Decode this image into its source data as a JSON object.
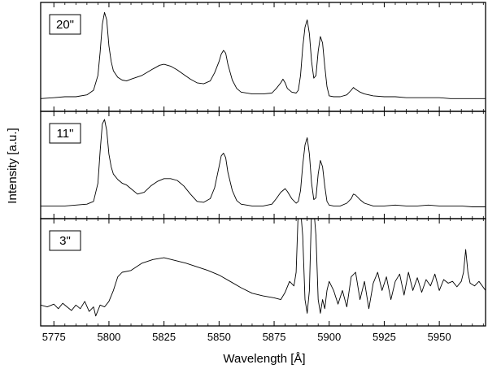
{
  "chart_data": {
    "type": "line",
    "xlabel": "Wavelength [Å]",
    "ylabel": "Intensity [a.u.]",
    "xlim": [
      5769,
      5971
    ],
    "x_ticks": [
      5775,
      5800,
      5825,
      5850,
      5875,
      5900,
      5925,
      5950
    ],
    "x_tick_labels": [
      "5775",
      "5800",
      "5825",
      "5850",
      "5875",
      "5900",
      "5925",
      "5950"
    ],
    "panels": [
      {
        "label": "20\"",
        "series": [
          {
            "x": [
              5769,
              5775,
              5780,
              5785,
              5790,
              5793,
              5795,
              5796,
              5797,
              5798,
              5799,
              5800,
              5801,
              5802,
              5804,
              5806,
              5808,
              5810,
              5815,
              5820,
              5823,
              5825,
              5828,
              5831,
              5834,
              5837,
              5840,
              5843,
              5846,
              5848,
              5850,
              5851,
              5852,
              5853,
              5854,
              5856,
              5858,
              5860,
              5865,
              5870,
              5874,
              5876,
              5878,
              5879,
              5880,
              5881,
              5883,
              5885,
              5886,
              5887,
              5888,
              5889,
              5890,
              5891,
              5892,
              5893,
              5894,
              5895,
              5896,
              5897,
              5898,
              5899,
              5900,
              5902,
              5905,
              5908,
              5910,
              5911,
              5912,
              5914,
              5916,
              5920,
              5925,
              5930,
              5935,
              5940,
              5945,
              5950,
              5955,
              5960,
              5965,
              5971
            ],
            "y": [
              0.05,
              0.06,
              0.07,
              0.07,
              0.09,
              0.14,
              0.3,
              0.55,
              0.85,
              0.98,
              0.9,
              0.62,
              0.45,
              0.35,
              0.28,
              0.25,
              0.24,
              0.26,
              0.3,
              0.37,
              0.41,
              0.42,
              0.4,
              0.36,
              0.31,
              0.26,
              0.22,
              0.21,
              0.24,
              0.33,
              0.45,
              0.53,
              0.57,
              0.54,
              0.42,
              0.25,
              0.16,
              0.12,
              0.1,
              0.1,
              0.11,
              0.16,
              0.22,
              0.26,
              0.22,
              0.16,
              0.12,
              0.11,
              0.14,
              0.3,
              0.6,
              0.82,
              0.9,
              0.75,
              0.45,
              0.27,
              0.3,
              0.56,
              0.72,
              0.65,
              0.4,
              0.18,
              0.08,
              0.07,
              0.07,
              0.09,
              0.14,
              0.17,
              0.15,
              0.12,
              0.1,
              0.08,
              0.07,
              0.07,
              0.06,
              0.06,
              0.06,
              0.06,
              0.05,
              0.05,
              0.05,
              0.05
            ]
          }
        ]
      },
      {
        "label": "11\"",
        "series": [
          {
            "x": [
              5769,
              5775,
              5780,
              5785,
              5790,
              5793,
              5795,
              5796,
              5797,
              5798,
              5799,
              5800,
              5801,
              5802,
              5804,
              5806,
              5808,
              5810,
              5813,
              5816,
              5819,
              5822,
              5825,
              5828,
              5831,
              5834,
              5837,
              5840,
              5843,
              5846,
              5848,
              5850,
              5851,
              5852,
              5853,
              5854,
              5856,
              5858,
              5860,
              5865,
              5870,
              5874,
              5876,
              5878,
              5880,
              5881,
              5883,
              5885,
              5886,
              5887,
              5888,
              5889,
              5890,
              5891,
              5892,
              5893,
              5894,
              5895,
              5896,
              5897,
              5898,
              5899,
              5900,
              5902,
              5905,
              5908,
              5910,
              5911,
              5912,
              5914,
              5916,
              5920,
              5925,
              5930,
              5935,
              5940,
              5945,
              5950,
              5955,
              5960,
              5965,
              5971
            ],
            "y": [
              0.05,
              0.05,
              0.05,
              0.06,
              0.07,
              0.1,
              0.3,
              0.65,
              0.95,
              1.0,
              0.88,
              0.62,
              0.48,
              0.4,
              0.34,
              0.3,
              0.28,
              0.24,
              0.18,
              0.2,
              0.27,
              0.32,
              0.35,
              0.35,
              0.33,
              0.27,
              0.18,
              0.1,
              0.09,
              0.13,
              0.25,
              0.48,
              0.6,
              0.63,
              0.58,
              0.42,
              0.22,
              0.11,
              0.07,
              0.05,
              0.05,
              0.07,
              0.13,
              0.2,
              0.24,
              0.21,
              0.13,
              0.08,
              0.1,
              0.22,
              0.5,
              0.72,
              0.8,
              0.62,
              0.3,
              0.12,
              0.14,
              0.4,
              0.55,
              0.48,
              0.27,
              0.1,
              0.06,
              0.05,
              0.05,
              0.08,
              0.13,
              0.18,
              0.17,
              0.12,
              0.08,
              0.05,
              0.05,
              0.06,
              0.05,
              0.05,
              0.06,
              0.05,
              0.05,
              0.05,
              0.04,
              0.04
            ]
          }
        ]
      },
      {
        "label": "3\"",
        "series": [
          {
            "x": [
              5769,
              5772,
              5775,
              5777,
              5779,
              5781,
              5783,
              5785,
              5787,
              5789,
              5791,
              5793,
              5794,
              5796,
              5798,
              5800,
              5802,
              5804,
              5806,
              5810,
              5815,
              5820,
              5825,
              5830,
              5835,
              5840,
              5845,
              5850,
              5855,
              5860,
              5865,
              5870,
              5875,
              5878,
              5880,
              5882,
              5884,
              5885,
              5886,
              5887,
              5888,
              5889,
              5890,
              5891,
              5892,
              5893,
              5894,
              5895,
              5896,
              5897,
              5898,
              5899,
              5900,
              5902,
              5904,
              5906,
              5908,
              5910,
              5912,
              5914,
              5916,
              5918,
              5920,
              5922,
              5924,
              5926,
              5928,
              5930,
              5932,
              5934,
              5936,
              5938,
              5940,
              5942,
              5944,
              5946,
              5948,
              5950,
              5952,
              5954,
              5956,
              5958,
              5960,
              5961,
              5962,
              5963,
              5964,
              5966,
              5968,
              5971
            ],
            "y": [
              0.14,
              0.12,
              0.15,
              0.1,
              0.16,
              0.12,
              0.08,
              0.14,
              0.1,
              0.18,
              0.07,
              0.12,
              0.02,
              0.14,
              0.12,
              0.18,
              0.3,
              0.45,
              0.5,
              0.52,
              0.6,
              0.64,
              0.66,
              0.63,
              0.6,
              0.56,
              0.52,
              0.47,
              0.4,
              0.33,
              0.27,
              0.24,
              0.22,
              0.2,
              0.28,
              0.4,
              0.35,
              0.5,
              1.2,
              1.2,
              0.9,
              0.2,
              0.05,
              0.3,
              1.2,
              1.2,
              0.9,
              0.2,
              0.05,
              0.2,
              0.1,
              0.3,
              0.4,
              0.3,
              0.15,
              0.3,
              0.12,
              0.45,
              0.5,
              0.2,
              0.4,
              0.1,
              0.38,
              0.5,
              0.3,
              0.45,
              0.2,
              0.4,
              0.48,
              0.25,
              0.5,
              0.3,
              0.44,
              0.28,
              0.42,
              0.35,
              0.48,
              0.3,
              0.42,
              0.38,
              0.4,
              0.34,
              0.4,
              0.5,
              0.75,
              0.5,
              0.38,
              0.35,
              0.4,
              0.3
            ]
          }
        ]
      }
    ]
  }
}
